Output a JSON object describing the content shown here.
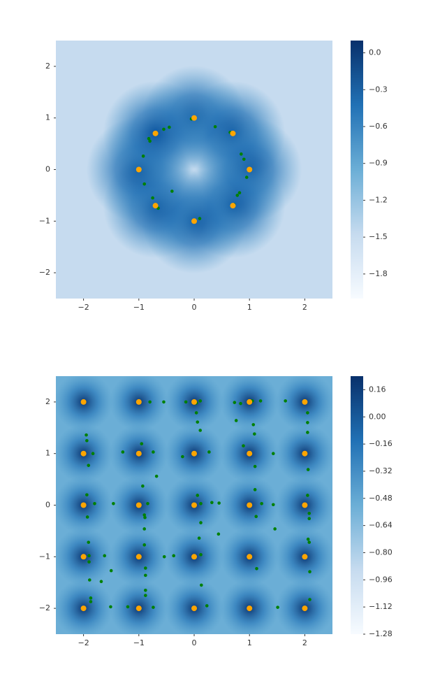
{
  "chart_data": [
    {
      "type": "scatter",
      "xlim": [
        -2.5,
        2.5
      ],
      "ylim": [
        -2.5,
        2.5
      ],
      "xticks": [
        {
          "value": -2,
          "label": "−2"
        },
        {
          "value": -1,
          "label": "−1"
        },
        0,
        1,
        2
      ],
      "yticks": [
        {
          "value": -2,
          "label": "−2"
        },
        {
          "value": -1,
          "label": "−1"
        },
        0,
        1,
        2
      ],
      "colorbar_lim": [
        -2.0,
        0.1
      ],
      "colorbar_ticks": [
        {
          "value": 0,
          "label": "0.0"
        },
        {
          "value": -0.3,
          "label": "−0.3"
        },
        {
          "value": -0.6,
          "label": "−0.6"
        },
        {
          "value": -0.9,
          "label": "−0.9"
        },
        {
          "value": -1.2,
          "label": "−1.2"
        },
        {
          "value": -1.5,
          "label": "−1.5"
        },
        {
          "value": -1.8,
          "label": "−1.8"
        }
      ],
      "series": [
        {
          "color": "#008000",
          "x": [
            0.38,
            0.85,
            0.9,
            0.95,
            0.82,
            0.78,
            -0.4,
            -0.9,
            -0.92,
            -0.45,
            -0.55,
            -0.8,
            -0.75,
            -0.65,
            0.1,
            -0.05,
            0.65,
            -0.82,
            0.72
          ],
          "values": [
            0.83,
            0.3,
            0.2,
            -0.15,
            -0.45,
            -0.5,
            -0.42,
            -0.28,
            0.26,
            0.82,
            0.78,
            0.55,
            -0.55,
            -0.75,
            -0.95,
            0.98,
            0.72,
            0.6,
            -0.68
          ]
        },
        {
          "color": "#ffa500",
          "x": [
            0,
            0.7,
            1,
            0.7,
            0,
            -0.7,
            -1,
            -0.7
          ],
          "values": [
            1,
            0.7,
            0,
            -0.7,
            -1,
            -0.7,
            0,
            0.7
          ]
        }
      ]
    },
    {
      "type": "scatter",
      "xlim": [
        -2.5,
        2.5
      ],
      "ylim": [
        -2.5,
        2.5
      ],
      "xticks": [
        {
          "value": -2,
          "label": "−2"
        },
        {
          "value": -1,
          "label": "−1"
        },
        0,
        1,
        2
      ],
      "yticks": [
        {
          "value": -2,
          "label": "−2"
        },
        {
          "value": -1,
          "label": "−1"
        },
        0,
        1,
        2
      ],
      "colorbar_lim": [
        -1.28,
        0.24
      ],
      "colorbar_ticks": [
        0.16,
        {
          "value": 0,
          "label": "0.00"
        },
        {
          "value": -0.16,
          "label": "−0.16"
        },
        {
          "value": -0.32,
          "label": "−0.32"
        },
        {
          "value": -0.48,
          "label": "−0.48"
        },
        {
          "value": -0.64,
          "label": "−0.64"
        },
        {
          "value": -0.8,
          "label": "−0.80"
        },
        {
          "value": -0.96,
          "label": "−0.96"
        },
        {
          "value": -1.12,
          "label": "−1.12"
        },
        {
          "value": -1.28,
          "label": "−1.28"
        }
      ],
      "series": [
        {
          "color": "#008000",
          "x": [
            -0.99,
            -0.8,
            -0.55,
            -0.15,
            0.04,
            0.11,
            0.04,
            0.06,
            0.11,
            0.73,
            0.84,
            1.05,
            1.2,
            1.65,
            2.05,
            2.05,
            2.05,
            0.76,
            1.07,
            1.09,
            0.89,
            1.1,
            1.43,
            2.06,
            -1.95,
            -1.94,
            -1.83,
            -1.91,
            -1.29,
            -0.95,
            -0.74,
            -0.68,
            -0.21,
            0.27,
            -0.93,
            -1.94,
            -1.8,
            -1.46,
            -1.93,
            -0.84,
            -0.9,
            -0.89,
            -0.9,
            0.06,
            0.12,
            0.32,
            0.45,
            0.12,
            0.09,
            0.44,
            1.1,
            1.12,
            1.22,
            1.43,
            1.46,
            2.05,
            2.08,
            2.08,
            2.06,
            2.08,
            2.09,
            -1.91,
            -1.9,
            -1.62,
            -1.9,
            -0.9,
            -0.54,
            -0.37,
            0.12,
            -0.88,
            -0.88,
            -1.5,
            -1.89,
            -1.68,
            -0.88,
            -0.88,
            -1.87,
            -1.87,
            -1.51,
            -1.2,
            -0.74,
            0.13,
            0.23,
            1.13,
            1.51,
            2.09
          ],
          "values": [
            2.0,
            2.0,
            2.0,
            2.0,
            1.98,
            2.02,
            1.79,
            1.61,
            1.45,
            1.99,
            1.97,
            2.02,
            2.02,
            2.02,
            1.79,
            1.6,
            1.41,
            1.64,
            1.56,
            1.38,
            1.15,
            0.75,
            1.0,
            0.69,
            1.36,
            1.25,
            1.0,
            0.77,
            1.03,
            1.19,
            1.03,
            0.56,
            0.94,
            1.03,
            0.37,
            0.2,
            0.03,
            0.03,
            -0.23,
            0.03,
            -0.19,
            -0.24,
            -0.46,
            0.19,
            0.03,
            0.05,
            0.04,
            -0.34,
            -0.64,
            -0.56,
            0.3,
            -0.22,
            0.03,
            0.01,
            -0.46,
            0.19,
            -0.16,
            -0.26,
            -0.66,
            -0.72,
            -1.29,
            -0.72,
            -0.98,
            -0.98,
            -1.1,
            -0.77,
            -1.0,
            -0.98,
            -0.96,
            -1.22,
            -1.36,
            -1.27,
            -1.45,
            -1.48,
            -1.65,
            -1.75,
            -1.8,
            -1.87,
            -1.97,
            -1.97,
            -1.98,
            -1.55,
            -1.95,
            -1.23,
            -1.98,
            -1.83
          ]
        },
        {
          "color": "#ffa500",
          "x": [
            -2,
            -1,
            0,
            1,
            2,
            -2,
            -1,
            0,
            1,
            2,
            -2,
            -1,
            0,
            1,
            2,
            -2,
            -1,
            0,
            1,
            2,
            -2,
            -1,
            0,
            1,
            2
          ],
          "values": [
            2,
            2,
            2,
            2,
            2,
            1,
            1,
            1,
            1,
            1,
            0,
            0,
            0,
            0,
            0,
            -1,
            -1,
            -1,
            -1,
            -1,
            -2,
            -2,
            -2,
            -2,
            -2
          ]
        }
      ]
    }
  ]
}
